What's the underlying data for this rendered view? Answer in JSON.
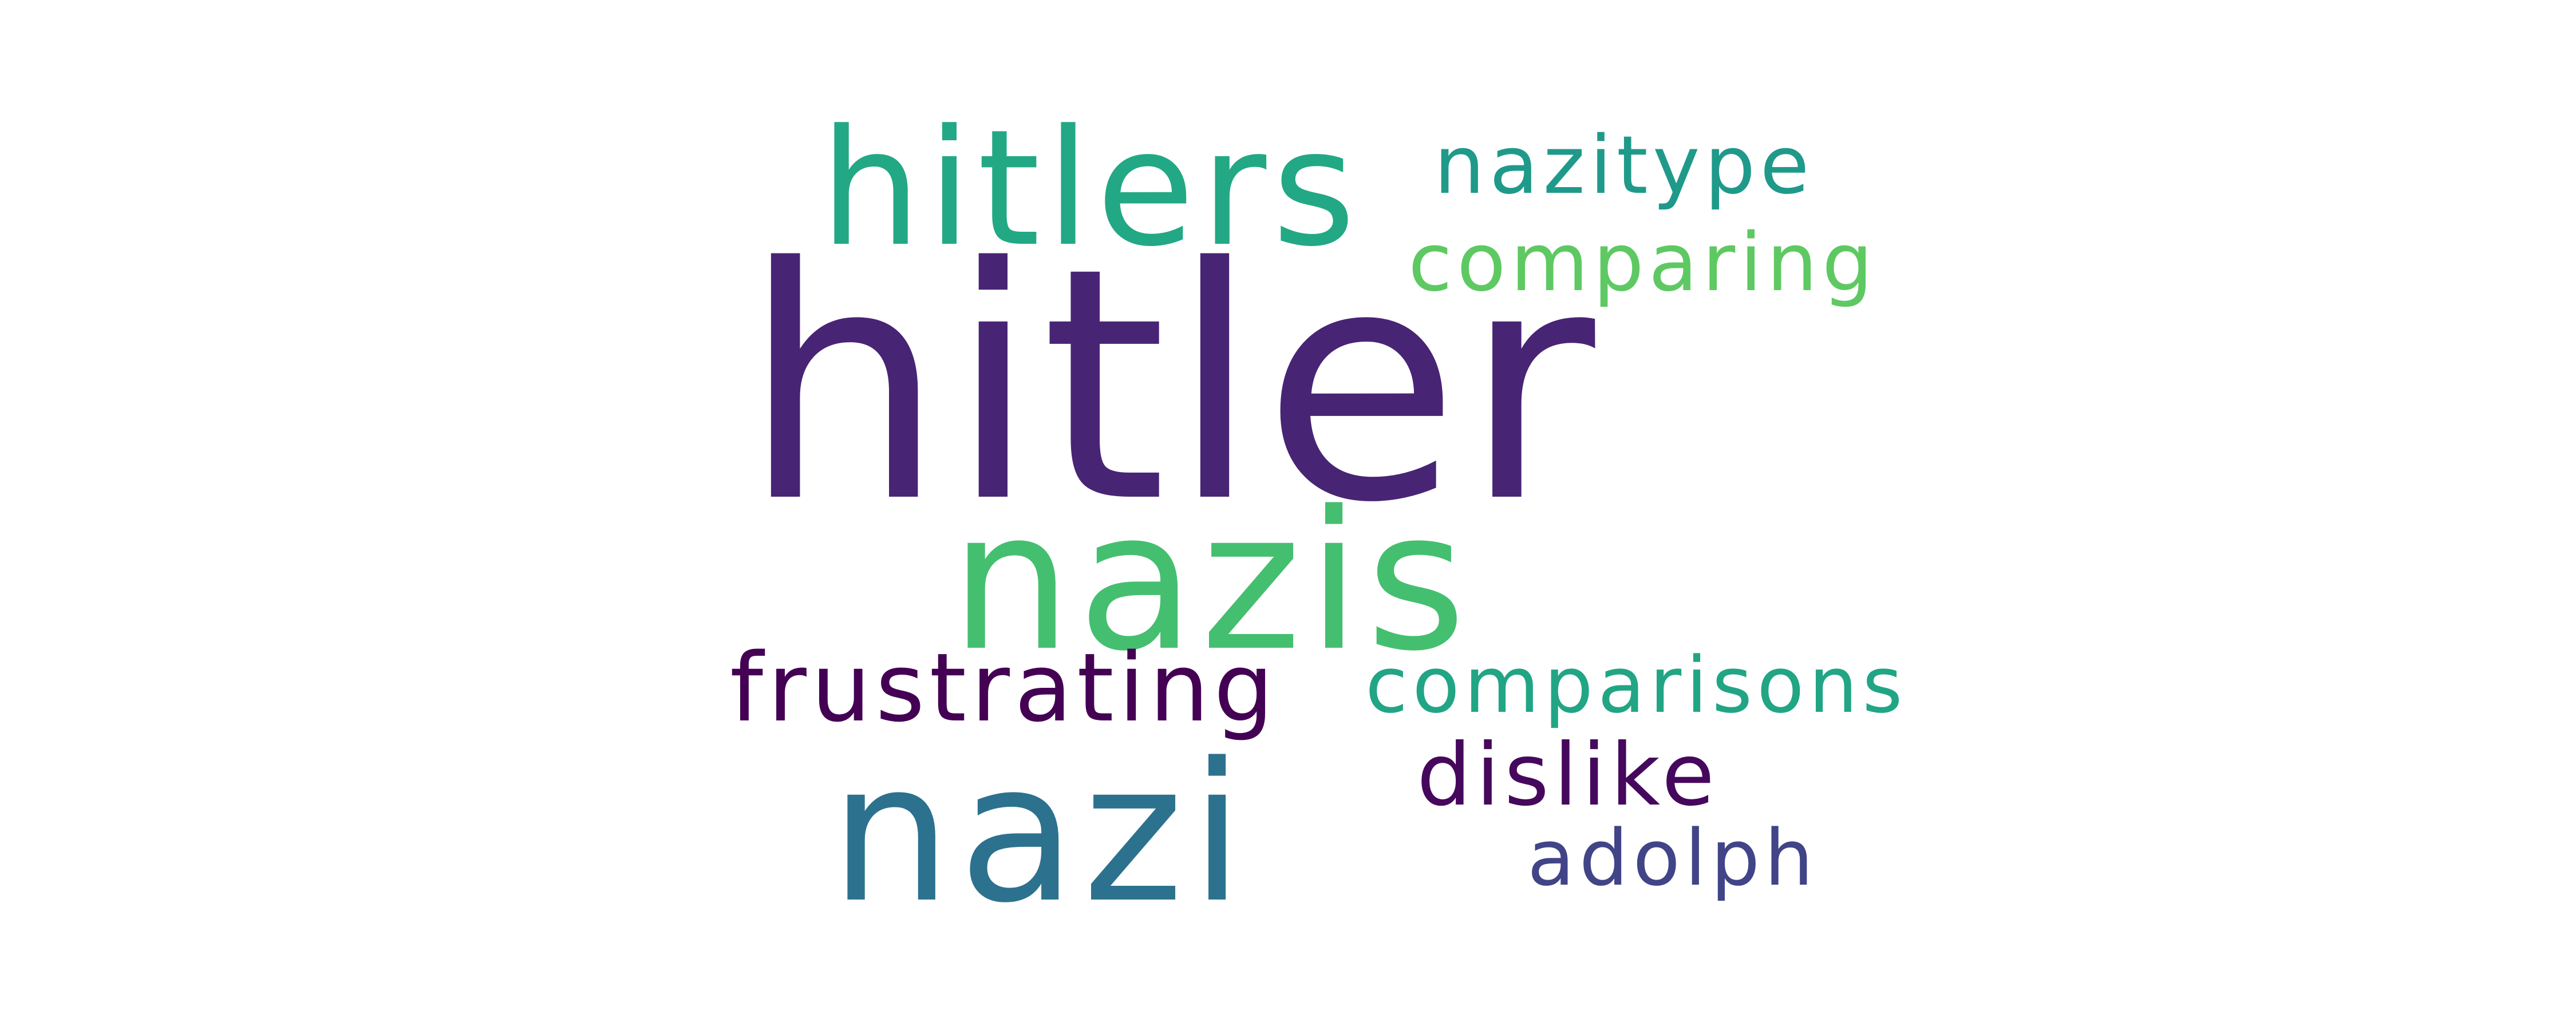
{
  "words": [
    {
      "text": "hitler",
      "color": "#482475"
    },
    {
      "text": "nazis",
      "color": "#44bf70"
    },
    {
      "text": "nazi",
      "color": "#2c728e"
    },
    {
      "text": "hitlers",
      "color": "#22a884"
    },
    {
      "text": "nazitype",
      "color": "#1f9a8a"
    },
    {
      "text": "comparing",
      "color": "#5ec962"
    },
    {
      "text": "frustrating",
      "color": "#440154"
    },
    {
      "text": "comparisons",
      "color": "#21a585"
    },
    {
      "text": "dislike",
      "color": "#46085c"
    },
    {
      "text": "adolph",
      "color": "#414487"
    }
  ]
}
